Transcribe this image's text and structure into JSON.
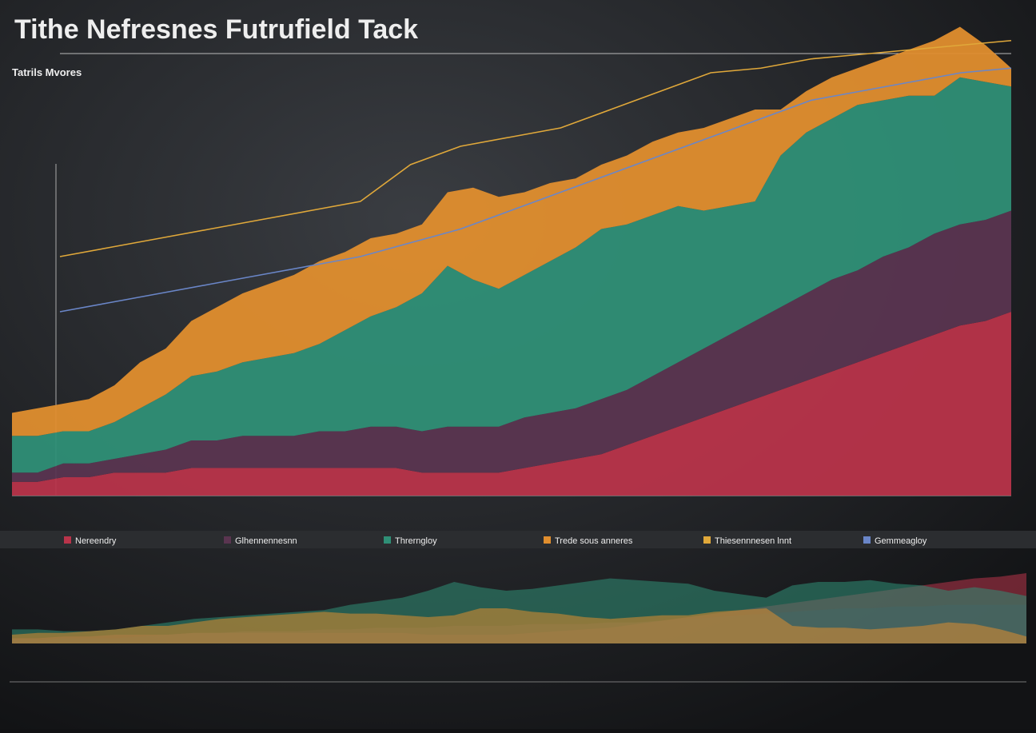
{
  "chart_data": {
    "type": "stacked-area",
    "title": "Tithe Nefresnes Futrufield Tack",
    "subtitle": "Tatrils Mvores",
    "ylim": [
      0,
      100
    ],
    "series": [
      {
        "name": "Nereendry",
        "color": "#b8344a",
        "values": [
          3,
          3,
          4,
          4,
          5,
          5,
          5,
          6,
          6,
          6,
          6,
          6,
          6,
          6,
          6,
          6,
          5,
          5,
          5,
          5,
          6,
          7,
          8,
          9,
          11,
          13,
          15,
          17,
          19,
          21,
          23,
          25,
          27,
          29,
          31,
          33,
          35,
          37,
          38,
          40
        ]
      },
      {
        "name": "Glhennennesnn",
        "color": "#5a3550",
        "values": [
          2,
          2,
          3,
          3,
          3,
          4,
          5,
          6,
          6,
          7,
          7,
          7,
          8,
          8,
          9,
          9,
          9,
          10,
          10,
          10,
          11,
          11,
          11,
          12,
          12,
          13,
          14,
          15,
          16,
          17,
          18,
          19,
          20,
          20,
          21,
          21,
          22,
          22,
          22,
          22
        ]
      },
      {
        "name": "Threrngloy",
        "color": "#2f8f76",
        "values": [
          8,
          8,
          7,
          7,
          8,
          10,
          12,
          14,
          15,
          16,
          17,
          18,
          19,
          22,
          24,
          26,
          30,
          35,
          32,
          30,
          31,
          33,
          35,
          37,
          36,
          35,
          34,
          30,
          28,
          26,
          33,
          35,
          35,
          36,
          34,
          33,
          30,
          32,
          30,
          27
        ]
      },
      {
        "name": "Trede sous anneres",
        "color": "#e08e2e",
        "values": [
          5,
          6,
          6,
          7,
          8,
          10,
          10,
          12,
          14,
          15,
          16,
          17,
          18,
          17,
          17,
          16,
          15,
          16,
          20,
          20,
          18,
          17,
          15,
          14,
          15,
          16,
          16,
          18,
          19,
          20,
          10,
          9,
          9,
          8,
          9,
          10,
          12,
          11,
          8,
          4
        ]
      }
    ],
    "lines": [
      {
        "name": "Thiesennnesen lnnt",
        "color": "#e0a83a",
        "values": [
          52,
          54,
          56,
          58,
          60,
          62,
          64,
          72,
          76,
          78,
          80,
          84,
          88,
          92,
          93,
          95,
          96,
          97,
          98,
          99
        ]
      },
      {
        "name": "Gemmeagloy",
        "color": "#6a86c8",
        "values": [
          40,
          42,
          44,
          46,
          48,
          50,
          52,
          55,
          58,
          62,
          66,
          70,
          74,
          78,
          82,
          86,
          88,
          90,
          92,
          93
        ]
      }
    ]
  }
}
